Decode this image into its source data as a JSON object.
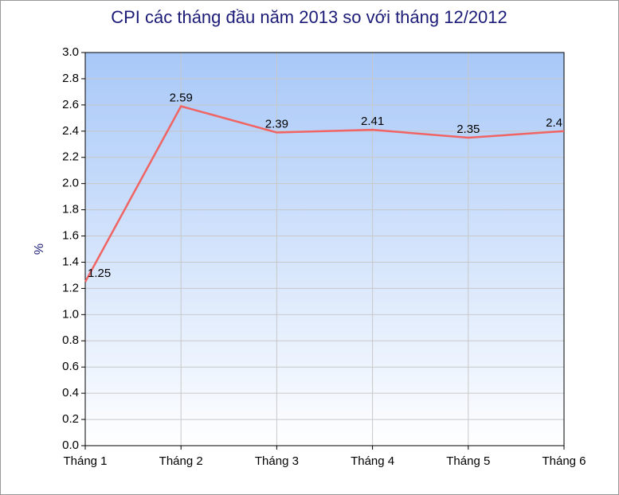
{
  "chart_data": {
    "type": "line",
    "title": "CPI các tháng đầu năm 2013 so với tháng 12/2012",
    "y_label": "%",
    "categories": [
      "Tháng 1",
      "Tháng 2",
      "Tháng 3",
      "Tháng 4",
      "Tháng 5",
      "Tháng 6"
    ],
    "series": [
      {
        "name": "CPI",
        "color": "#f06464",
        "values": [
          1.25,
          2.59,
          2.39,
          2.41,
          2.35,
          2.4
        ]
      }
    ],
    "ylim": [
      0,
      3
    ],
    "yticks": [
      {
        "value": 0,
        "label": "0.0"
      },
      0.2,
      0.4,
      0.6,
      0.8,
      {
        "value": 1,
        "label": "1.0"
      },
      1.2,
      1.4,
      1.6,
      1.8,
      {
        "value": 2,
        "label": "2.0"
      },
      2.2,
      2.4,
      2.6,
      2.8,
      {
        "value": 3,
        "label": "3.0"
      }
    ],
    "grid": true
  }
}
